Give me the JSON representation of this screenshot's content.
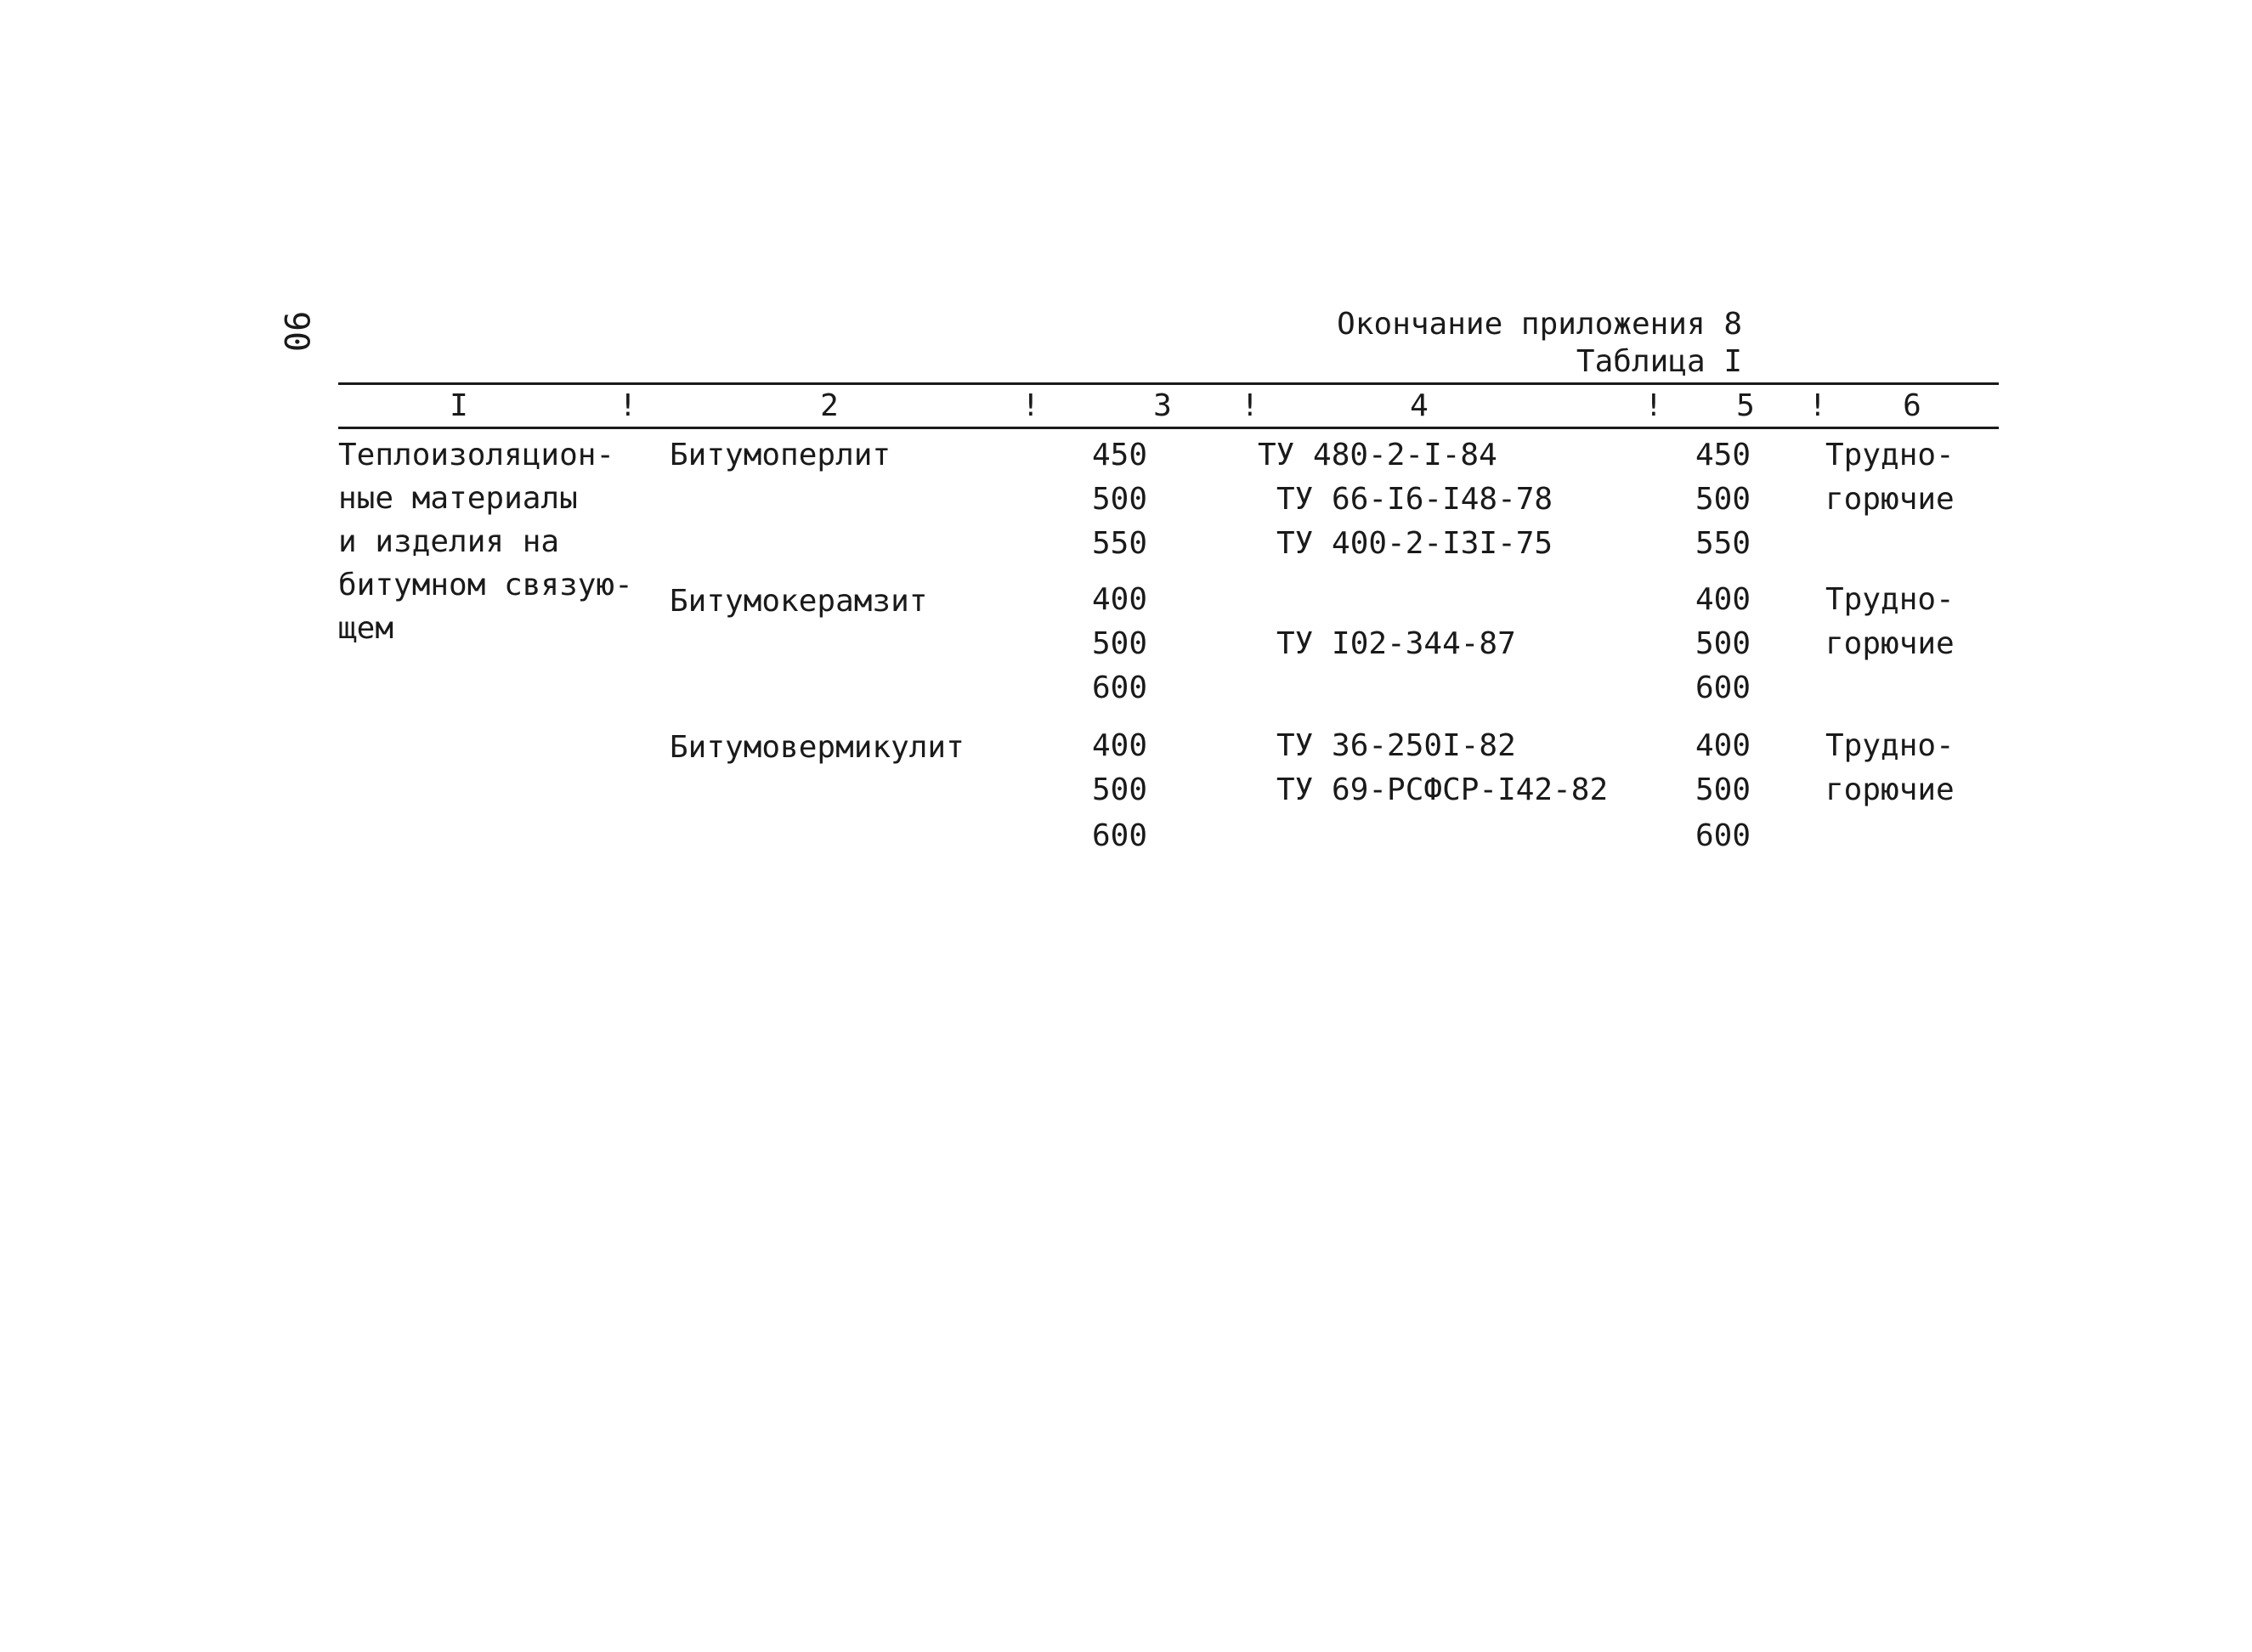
{
  "page_number": "90",
  "header": {
    "continuation": "Окончание приложения 8",
    "table_label": "Таблица I"
  },
  "columns": [
    "I",
    "2",
    "3",
    "4",
    "5",
    "6"
  ],
  "separator": "!",
  "group": {
    "lines": [
      "Теплоизоляцион-",
      "ные материалы",
      "и изделия на",
      "битумном связую-",
      "щем"
    ]
  },
  "materials": [
    {
      "name": "Битумоперлит",
      "densities": [
        "450",
        "500",
        "550"
      ],
      "standards": [
        "ТУ 480-2-I-84",
        "ТУ 66-I6-I48-78",
        "ТУ 400-2-I3I-75"
      ],
      "densities_col5": [
        "450",
        "500",
        "550"
      ],
      "fire": [
        "Трудно-",
        "горючие"
      ]
    },
    {
      "name": "Битумокерамзит",
      "densities": [
        "400",
        "500",
        "600"
      ],
      "standards": [
        "",
        "ТУ I02-344-87",
        ""
      ],
      "densities_col5": [
        "400",
        "500",
        "600"
      ],
      "fire": [
        "Трудно-",
        "горючие"
      ]
    },
    {
      "name": "Битумовермикулит",
      "densities": [
        "400",
        "500",
        "600"
      ],
      "standards": [
        "ТУ 36-250I-82",
        "ТУ 69-РСФСР-I42-82",
        ""
      ],
      "densities_col5": [
        "400",
        "500",
        "600"
      ],
      "fire": [
        "Трудно-",
        "горючие"
      ]
    }
  ]
}
